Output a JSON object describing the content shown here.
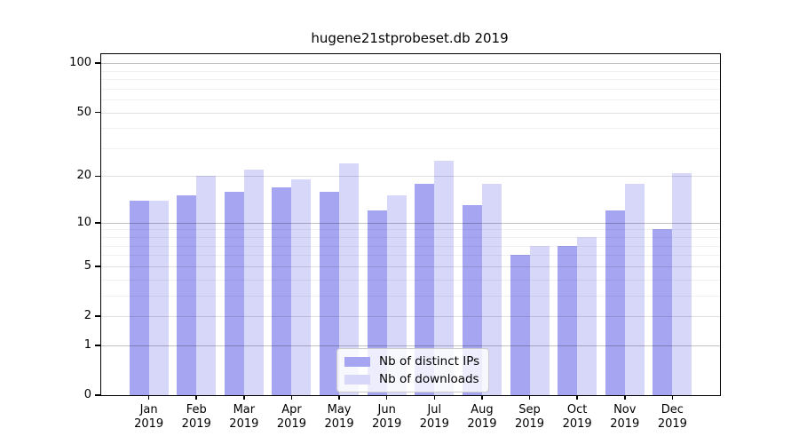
{
  "chart_data": {
    "type": "bar",
    "title": "hugene21stprobeset.db 2019",
    "categories": [
      "Jan",
      "Feb",
      "Mar",
      "Apr",
      "May",
      "Jun",
      "Jul",
      "Aug",
      "Sep",
      "Oct",
      "Nov",
      "Dec"
    ],
    "year_label": "2019",
    "series": [
      {
        "name": "Nb of distinct IPs",
        "color": "#a5a5f2",
        "values": [
          14,
          15,
          16,
          17,
          16,
          12,
          18,
          13,
          6,
          7,
          12,
          9
        ]
      },
      {
        "name": "Nb of downloads",
        "color": "#d7d7f9",
        "values": [
          14,
          20,
          22,
          19,
          24,
          15,
          25,
          18,
          7,
          8,
          18,
          21
        ]
      }
    ],
    "y_axis": {
      "scale": "log1p",
      "tick_labels": [
        "0",
        "1",
        "2",
        "5",
        "10",
        "20",
        "50",
        "100"
      ],
      "major_ticks": [
        0,
        1,
        2,
        5,
        10,
        20,
        50,
        100
      ],
      "decade_ticks": [
        1,
        10,
        100
      ],
      "mid_ticks": [
        2,
        5,
        20,
        50
      ],
      "minor_ticks": [
        3,
        4,
        6,
        7,
        8,
        9,
        30,
        40,
        60,
        70,
        80,
        90
      ]
    },
    "x_axis": {
      "tick_count": 12
    },
    "legend": {
      "entries": [
        "Nb of distinct IPs",
        "Nb of downloads"
      ],
      "location": "lower center-right"
    },
    "grid": true
  }
}
